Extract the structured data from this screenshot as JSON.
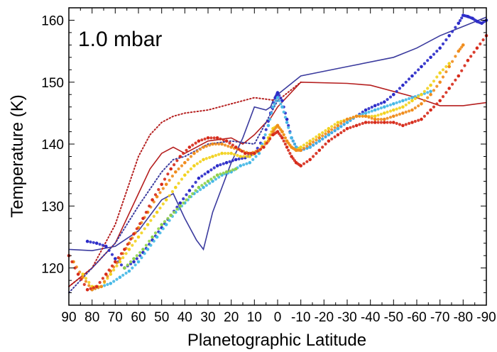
{
  "chart_data": {
    "type": "scatter",
    "title": "",
    "annotation": "1.0 mbar",
    "xlabel": "Planetographic Latitude",
    "ylabel": "Temperature (K)",
    "xlim": [
      90,
      -90
    ],
    "ylim": [
      114,
      162
    ],
    "x_ticks": [
      90,
      80,
      70,
      60,
      50,
      40,
      30,
      20,
      10,
      0,
      -10,
      -20,
      -30,
      -40,
      -50,
      -60,
      -70,
      -80,
      -90
    ],
    "x_tick_labels": [
      "90",
      "80",
      "70",
      "60",
      "50",
      "40",
      "30",
      "20",
      "10",
      "0",
      "-10",
      "-20",
      "-30",
      "-40",
      "-50",
      "-60",
      "-70",
      "-80",
      "-90"
    ],
    "y_ticks": [
      120,
      130,
      140,
      150,
      160
    ],
    "y_tick_labels": [
      "120",
      "130",
      "140",
      "150",
      "160"
    ],
    "grid": false,
    "series": [
      {
        "style": "line",
        "color": "#3b3b9e",
        "x": [
          90,
          80,
          70,
          60,
          50,
          45,
          40,
          35,
          32,
          28,
          20,
          15,
          10,
          5,
          3,
          2,
          0,
          -10,
          -30,
          -50,
          -60,
          -70,
          -80,
          -90
        ],
        "y": [
          123,
          122.8,
          123.5,
          126,
          131,
          132,
          128,
          124.5,
          123,
          129,
          137,
          141,
          146,
          145.5,
          146,
          147,
          148,
          151,
          152.5,
          154,
          155.5,
          157.5,
          159,
          160.5
        ]
      },
      {
        "style": "line",
        "color": "#b51f1f",
        "x": [
          90,
          80,
          70,
          60,
          55,
          50,
          45,
          40,
          35,
          30,
          20,
          15,
          10,
          5,
          3,
          0,
          -10,
          -30,
          -40,
          -50,
          -60,
          -70,
          -80,
          -90
        ],
        "y": [
          117,
          120,
          124,
          132,
          136,
          138.5,
          139.5,
          138.5,
          139.5,
          140.5,
          141,
          140,
          141.5,
          143.5,
          144.2,
          146,
          150,
          149.8,
          149.5,
          148.5,
          147.5,
          146.2,
          146.2,
          146.7
        ]
      },
      {
        "style": "dotted",
        "color": "#b51f1f",
        "x": [
          90,
          80,
          70,
          60,
          55,
          50,
          45,
          40,
          30,
          20,
          10,
          0,
          -10
        ],
        "y": [
          117,
          120,
          127,
          138,
          141.5,
          143.5,
          144.5,
          145,
          145.5,
          146.5,
          147.5,
          147,
          150
        ]
      },
      {
        "style": "dotted",
        "color": "#3b3b9e",
        "x": [
          90,
          80,
          70,
          60,
          50,
          45,
          40,
          30,
          20,
          10,
          0
        ],
        "y": [
          116,
          120,
          124,
          130,
          135.5,
          137.5,
          138,
          140,
          140.5,
          140,
          147
        ]
      },
      {
        "style": "markers",
        "color": "#2b2bc8",
        "x": [
          82,
          78,
          74,
          70,
          66,
          62,
          58,
          54,
          50,
          46,
          42,
          38,
          34,
          30,
          26,
          22,
          18,
          14,
          10,
          6,
          3,
          1,
          0,
          -2,
          -4,
          -6,
          -8,
          -10,
          -14,
          -18,
          -22,
          -26,
          -30,
          -34,
          -38,
          -42,
          -46,
          -50,
          -54,
          -58,
          -62,
          -66,
          -70,
          -74,
          -78,
          -80,
          -82,
          -84,
          -86,
          -88,
          -90
        ],
        "y": [
          124.3,
          124,
          123.5,
          121.5,
          120,
          121,
          122.5,
          124.5,
          126.5,
          128.5,
          130.5,
          132.5,
          134.5,
          135.5,
          136.5,
          137,
          137.5,
          137.8,
          138.5,
          141,
          145,
          147.5,
          148.3,
          147,
          144,
          141,
          139.5,
          139,
          139.5,
          140.5,
          141.5,
          142.5,
          143.5,
          144.5,
          145.5,
          146.2,
          146.8,
          148,
          149.5,
          151,
          152.5,
          154,
          155.5,
          157.5,
          159.5,
          160.8,
          160.6,
          160.3,
          159.8,
          159.5,
          160
        ]
      },
      {
        "style": "markers",
        "color": "#45b8e6",
        "x": [
          80,
          76,
          72,
          68,
          64,
          60,
          56,
          52,
          48,
          44,
          40,
          36,
          32,
          28,
          24,
          20,
          16,
          12,
          8,
          4,
          2,
          0,
          -2,
          -4,
          -6,
          -8,
          -10,
          -14,
          -18,
          -22,
          -26,
          -30,
          -34,
          -38,
          -42,
          -46,
          -50,
          -54,
          -58,
          -62,
          -66
        ],
        "y": [
          116.5,
          117,
          117.5,
          118.5,
          119.5,
          121,
          123,
          125,
          127,
          129,
          130.5,
          132,
          133,
          134,
          135,
          135.5,
          136.5,
          137,
          138.5,
          143,
          146,
          147.5,
          146,
          143.5,
          141,
          139.5,
          139,
          139.5,
          140.5,
          141.5,
          142.5,
          143.5,
          144.5,
          145,
          145.5,
          146,
          146.5,
          147,
          147.5,
          148,
          148.5
        ]
      },
      {
        "style": "markers",
        "color": "#8fd14a",
        "x": [
          66,
          62,
          58,
          54,
          50,
          46,
          42,
          38,
          34,
          30,
          26,
          22,
          18
        ],
        "y": [
          120,
          121.5,
          123,
          125,
          127,
          128.5,
          130,
          131.5,
          133,
          134,
          135,
          135.5,
          136
        ]
      },
      {
        "style": "markers",
        "color": "#f2d21e",
        "x": [
          84,
          80,
          76,
          72,
          68,
          64,
          60,
          56,
          52,
          48,
          44,
          40,
          36,
          32,
          28,
          24,
          20,
          16,
          12,
          8,
          4,
          2,
          0,
          -2,
          -4,
          -6,
          -8,
          -10,
          -14,
          -18,
          -22,
          -26,
          -30,
          -34,
          -38,
          -42,
          -46,
          -50,
          -54,
          -58,
          -62,
          -66,
          -70,
          -74
        ],
        "y": [
          119,
          117,
          117,
          119,
          121,
          123,
          125,
          127,
          129,
          131,
          133,
          135,
          136.5,
          137.5,
          138,
          138.5,
          138.5,
          138,
          138,
          139,
          141,
          142.5,
          143,
          142,
          140.5,
          139.5,
          139,
          139.5,
          140.5,
          141.5,
          142.5,
          143.5,
          144,
          144.5,
          144.5,
          144.5,
          145,
          145.5,
          146,
          147,
          148,
          149.5,
          151.5,
          153
        ]
      },
      {
        "style": "markers",
        "color": "#f08c1c",
        "x": [
          88,
          84,
          80,
          76,
          72,
          68,
          64,
          60,
          56,
          52,
          48,
          44,
          40,
          36,
          32,
          28,
          24,
          20,
          16,
          12,
          8,
          4,
          2,
          0,
          -2,
          -4,
          -6,
          -8,
          -10,
          -14,
          -18,
          -22,
          -26,
          -30,
          -34,
          -38,
          -42,
          -46,
          -50,
          -54,
          -58,
          -62,
          -66,
          -70,
          -74,
          -78,
          -80
        ],
        "y": [
          121,
          118.5,
          116.5,
          117,
          119.5,
          121.5,
          124,
          126.5,
          129,
          131.5,
          133.5,
          135.5,
          137,
          138.5,
          139.5,
          140,
          140,
          139.5,
          139,
          138.5,
          139,
          140.5,
          142,
          143,
          142,
          140.5,
          139.5,
          139,
          139,
          140,
          141,
          142,
          143,
          144,
          144.5,
          144.5,
          144,
          144,
          144.5,
          145,
          145.5,
          146.5,
          148,
          150,
          152.5,
          155,
          156
        ]
      },
      {
        "style": "markers",
        "color": "#d62a1a",
        "x": [
          90,
          86,
          82,
          78,
          74,
          70,
          66,
          62,
          58,
          54,
          50,
          46,
          42,
          38,
          34,
          30,
          26,
          22,
          18,
          14,
          10,
          6,
          2,
          0,
          -2,
          -4,
          -6,
          -8,
          -10,
          -14,
          -18,
          -22,
          -26,
          -30,
          -34,
          -38,
          -42,
          -46,
          -50,
          -54,
          -58,
          -62,
          -66,
          -70,
          -74,
          -78,
          -82,
          -86,
          -90
        ],
        "y": [
          122,
          119,
          116.5,
          117,
          119,
          121,
          123,
          125.5,
          128,
          131,
          133.5,
          136,
          138,
          139.5,
          140.5,
          141,
          141,
          140.5,
          139.5,
          138.5,
          138.5,
          139.5,
          141.5,
          142,
          141,
          139.5,
          138,
          137,
          136.5,
          137.5,
          139,
          140.5,
          141.5,
          142.5,
          143,
          143.5,
          143.5,
          143.5,
          143.5,
          143,
          143.5,
          144,
          145.5,
          147,
          149,
          151,
          153.5,
          155.5,
          157.5
        ]
      }
    ]
  }
}
